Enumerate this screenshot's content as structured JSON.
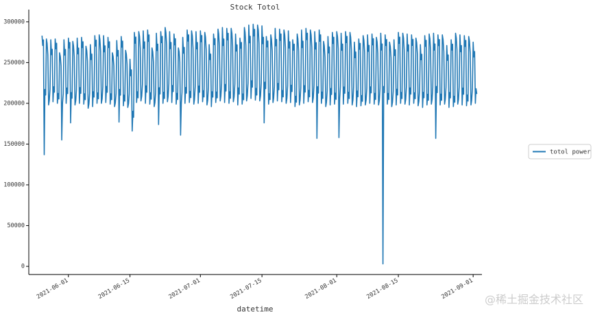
{
  "chart_data": {
    "type": "line",
    "title": "Stock Totol",
    "xlabel": "datetime",
    "ylabel": "",
    "ylim": [
      -10000,
      315000
    ],
    "xlim": [
      "2021-05-23",
      "2021-09-03"
    ],
    "y_ticks": [
      0,
      50000,
      100000,
      150000,
      200000,
      250000,
      300000
    ],
    "y_tick_labels": [
      "0",
      "50000",
      "100000",
      "150000",
      "200000",
      "250000",
      "300000"
    ],
    "x_ticks": [
      "2021-06-01",
      "2021-06-15",
      "2021-07-01",
      "2021-07-15",
      "2021-08-01",
      "2021-08-15",
      "2021-09-01"
    ],
    "x_tick_labels": [
      "2021-06-01",
      "2021-06-15",
      "2021-07-01",
      "2021-07-15",
      "2021-08-01",
      "2021-08-15",
      "2021-09-01"
    ],
    "grid": false,
    "legend_position": "right",
    "series": [
      {
        "name": "totol power",
        "color": "#1f77b4",
        "x": [
          "2021-05-26",
          "2021-05-27",
          "2021-05-28",
          "2021-05-29",
          "2021-05-30",
          "2021-05-31",
          "2021-06-01",
          "2021-06-02",
          "2021-06-03",
          "2021-06-04",
          "2021-06-05",
          "2021-06-06",
          "2021-06-07",
          "2021-06-08",
          "2021-06-09",
          "2021-06-10",
          "2021-06-11",
          "2021-06-12",
          "2021-06-13",
          "2021-06-14",
          "2021-06-15",
          "2021-06-16",
          "2021-06-17",
          "2021-06-18",
          "2021-06-19",
          "2021-06-20",
          "2021-06-21",
          "2021-06-22",
          "2021-06-23",
          "2021-06-24",
          "2021-06-25",
          "2021-06-26",
          "2021-06-27",
          "2021-06-28",
          "2021-06-29",
          "2021-06-30",
          "2021-07-01",
          "2021-07-02",
          "2021-07-03",
          "2021-07-04",
          "2021-07-05",
          "2021-07-06",
          "2021-07-07",
          "2021-07-08",
          "2021-07-09",
          "2021-07-10",
          "2021-07-11",
          "2021-07-12",
          "2021-07-13",
          "2021-07-14",
          "2021-07-15",
          "2021-07-16",
          "2021-07-17",
          "2021-07-18",
          "2021-07-19",
          "2021-07-20",
          "2021-07-21",
          "2021-07-22",
          "2021-07-23",
          "2021-07-24",
          "2021-07-25",
          "2021-07-26",
          "2021-07-27",
          "2021-07-28",
          "2021-07-29",
          "2021-07-30",
          "2021-07-31",
          "2021-08-01",
          "2021-08-02",
          "2021-08-03",
          "2021-08-04",
          "2021-08-05",
          "2021-08-06",
          "2021-08-07",
          "2021-08-08",
          "2021-08-09",
          "2021-08-10",
          "2021-08-11",
          "2021-08-12",
          "2021-08-13",
          "2021-08-14",
          "2021-08-15",
          "2021-08-16",
          "2021-08-17",
          "2021-08-18",
          "2021-08-19",
          "2021-08-20",
          "2021-08-21",
          "2021-08-22",
          "2021-08-23",
          "2021-08-24",
          "2021-08-25",
          "2021-08-26",
          "2021-08-27",
          "2021-08-28",
          "2021-08-29",
          "2021-08-30",
          "2021-08-31",
          "2021-09-01"
        ],
        "high": [
          283000,
          279000,
          278000,
          279000,
          262000,
          278000,
          280000,
          276000,
          280000,
          281000,
          270000,
          272000,
          283000,
          284000,
          283000,
          281000,
          262000,
          277000,
          282000,
          265000,
          254000,
          287000,
          288000,
          289000,
          290000,
          268000,
          286000,
          288000,
          293000,
          288000,
          285000,
          268000,
          281000,
          290000,
          289000,
          288000,
          289000,
          287000,
          272000,
          285000,
          291000,
          293000,
          292000,
          292000,
          285000,
          280000,
          293000,
          296000,
          297000,
          296000,
          295000,
          282000,
          284000,
          292000,
          291000,
          290000,
          289000,
          278000,
          285000,
          290000,
          292000,
          290000,
          288000,
          290000,
          276000,
          282000,
          287000,
          288000,
          286000,
          288000,
          287000,
          275000,
          279000,
          283000,
          284000,
          285000,
          281000,
          286000,
          284000,
          275000,
          278000,
          287000,
          286000,
          285000,
          284000,
          280000,
          272000,
          283000,
          285000,
          286000,
          284000,
          284000,
          271000,
          278000,
          286000,
          284000,
          283000,
          282000,
          275000
        ],
        "low": [
          205000,
          198000,
          202000,
          200000,
          196000,
          200000,
          201000,
          198000,
          200000,
          199000,
          194000,
          196000,
          200000,
          200000,
          201000,
          199000,
          196000,
          198000,
          197000,
          195000,
          170000,
          201000,
          203000,
          200000,
          199000,
          196000,
          198000,
          200000,
          202000,
          201000,
          199000,
          196000,
          200000,
          201000,
          199000,
          200000,
          202000,
          198000,
          196000,
          201000,
          203000,
          201000,
          200000,
          202000,
          198000,
          199000,
          203000,
          206000,
          204000,
          203000,
          204000,
          199000,
          201000,
          203000,
          202000,
          200000,
          201000,
          196000,
          198000,
          200000,
          202000,
          201000,
          199000,
          200000,
          196000,
          198000,
          199000,
          200000,
          199000,
          200000,
          198000,
          196000,
          197000,
          198000,
          200000,
          199000,
          198000,
          200000,
          199000,
          196000,
          198000,
          200000,
          199000,
          198000,
          200000,
          197000,
          195000,
          198000,
          199000,
          200000,
          198000,
          199000,
          195000,
          196000,
          199000,
          198000,
          197000,
          198000,
          200000
        ]
      }
    ],
    "spikes": [
      {
        "x": "2021-05-26",
        "value": 137000
      },
      {
        "x": "2021-05-30",
        "value": 155000
      },
      {
        "x": "2021-06-01",
        "value": 176000
      },
      {
        "x": "2021-06-12",
        "value": 177000
      },
      {
        "x": "2021-06-15",
        "value": 166000
      },
      {
        "x": "2021-06-21",
        "value": 174000
      },
      {
        "x": "2021-06-26",
        "value": 161000
      },
      {
        "x": "2021-07-15",
        "value": 176000
      },
      {
        "x": "2021-07-27",
        "value": 157000
      },
      {
        "x": "2021-08-01",
        "value": 158000
      },
      {
        "x": "2021-08-11",
        "value": 3000
      },
      {
        "x": "2021-08-23",
        "value": 157000
      }
    ]
  },
  "watermark": "@稀土掘金技术社区"
}
